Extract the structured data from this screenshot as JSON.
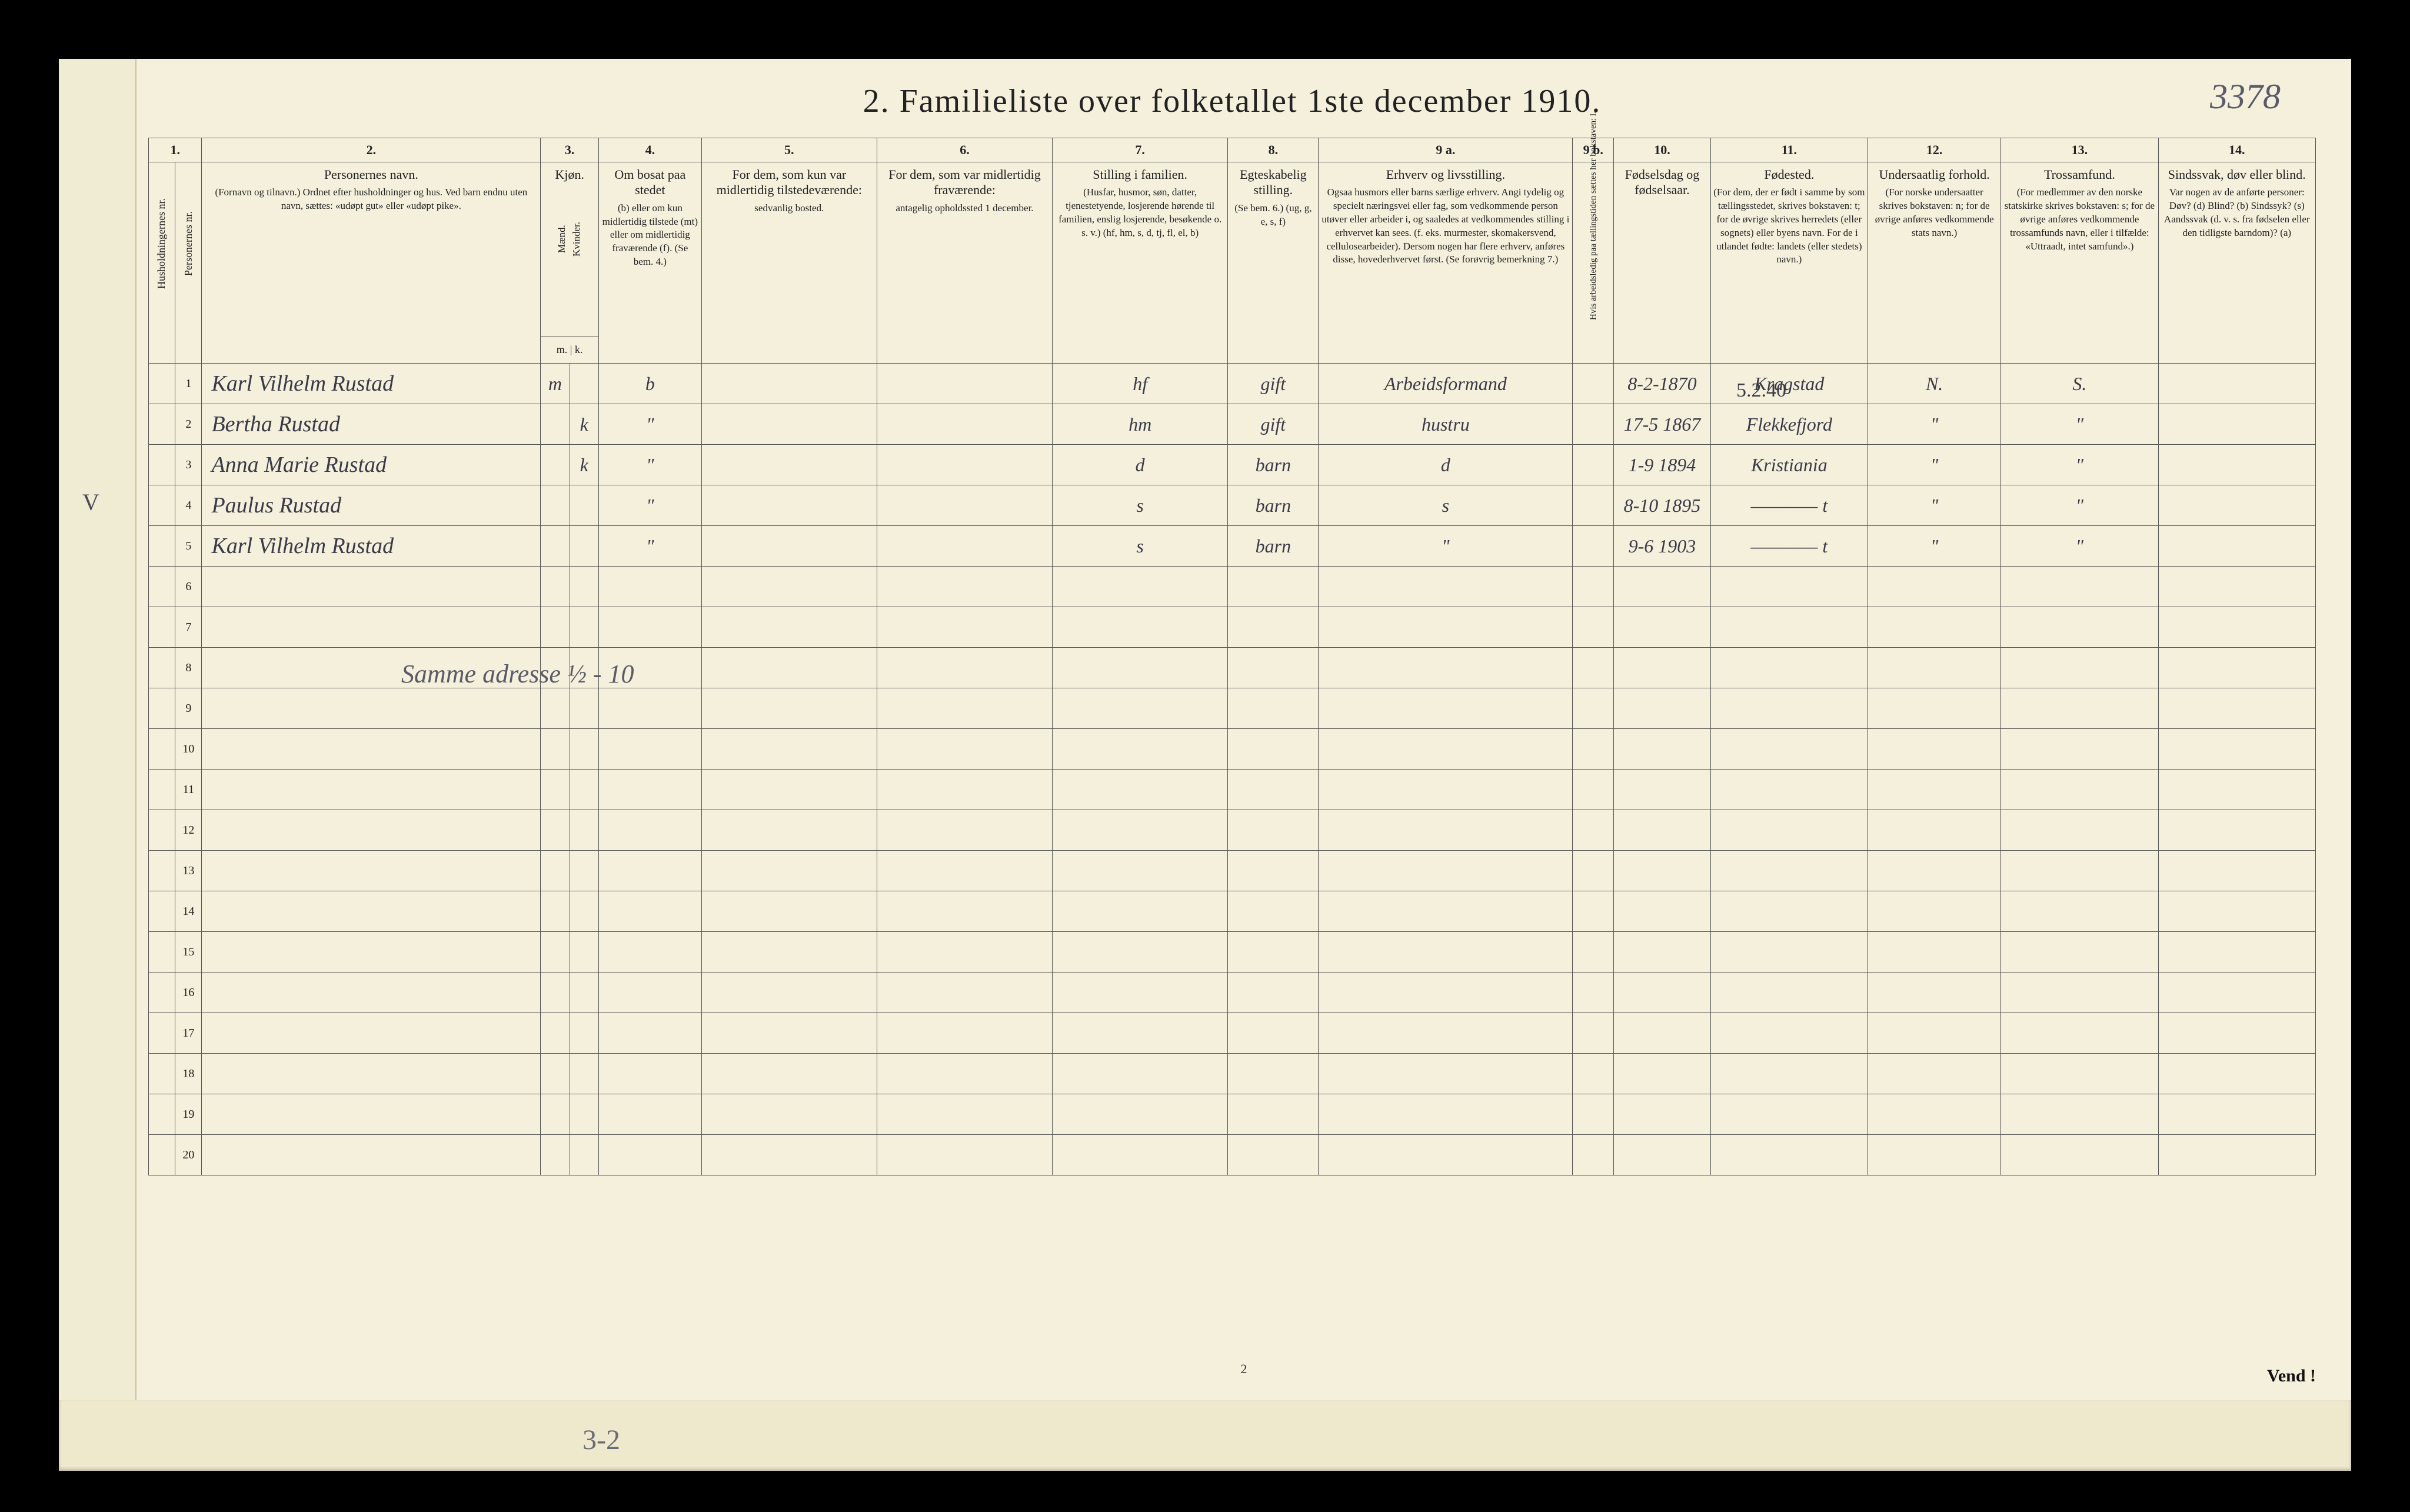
{
  "page": {
    "handwritten_topright": "3378",
    "title": "2.  Familieliste over folketallet 1ste december 1910.",
    "footer_pagenum": "2",
    "footer_vend": "Vend !",
    "bottom_note": "3-2",
    "left_annotation": "V",
    "overlay_address": "Samme adresse ½ - 10",
    "annotation_date": "5.2.40"
  },
  "col_numbers": [
    "1.",
    "2.",
    "3.",
    "4.",
    "5.",
    "6.",
    "7.",
    "8.",
    "9 a.",
    "9 b.",
    "10.",
    "11.",
    "12.",
    "13.",
    "14."
  ],
  "headers": {
    "c1a": "Husholdningernes nr.",
    "c1b": "Personernes nr.",
    "c2": {
      "title": "Personernes navn.",
      "sub": "(Fornavn og tilnavn.)\nOrdnet efter husholdninger og hus.\nVed barn endnu uten navn, sættes: «udøpt gut»\neller «udøpt pike»."
    },
    "c3": {
      "title": "Kjøn.",
      "left": "Mænd.",
      "right": "Kvinder.",
      "bottom": "m. | k."
    },
    "c4": {
      "title": "Om bosat paa stedet",
      "sub": "(b) eller om kun midlertidig tilstede (mt) eller om midlertidig fraværende (f).\n(Se bem. 4.)"
    },
    "c5": {
      "title": "For dem, som kun var midlertidig tilstedeværende:",
      "sub": "sedvanlig bosted."
    },
    "c6": {
      "title": "For dem, som var midlertidig fraværende:",
      "sub": "antagelig opholdssted 1 december."
    },
    "c7": {
      "title": "Stilling i familien.",
      "sub": "(Husfar, husmor, søn, datter, tjenestetyende, losjerende hørende til familien, enslig losjerende, besøkende o. s. v.)\n(hf, hm, s, d, tj, fl, el, b)"
    },
    "c8": {
      "title": "Egteskabelig stilling.",
      "sub": "(Se bem. 6.)\n(ug, g, e, s, f)"
    },
    "c9a": {
      "title": "Erhverv og livsstilling.",
      "sub": "Ogsaa husmors eller barns særlige erhverv. Angi tydelig og specielt næringsvei eller fag, som vedkommende person utøver eller arbeider i, og saaledes at vedkommendes stilling i erhvervet kan sees. (f. eks. murmester, skomakersvend, cellulosearbeider). Dersom nogen har flere erhverv, anføres disse, hovederhvervet først.\n(Se forøvrig bemerkning 7.)"
    },
    "c9b": "Hvis arbeidsledig paa tællingstiden sættes her bokstaven: l.",
    "c10": {
      "title": "Fødselsdag og fødselsaar."
    },
    "c11": {
      "title": "Fødested.",
      "sub": "(For dem, der er født i samme by som tællingsstedet, skrives bokstaven: t; for de øvrige skrives herredets (eller sognets) eller byens navn. For de i utlandet fødte: landets (eller stedets) navn.)"
    },
    "c12": {
      "title": "Undersaatlig forhold.",
      "sub": "(For norske undersaatter skrives bokstaven: n; for de øvrige anføres vedkommende stats navn.)"
    },
    "c13": {
      "title": "Trossamfund.",
      "sub": "(For medlemmer av den norske statskirke skrives bokstaven: s; for de øvrige anføres vedkommende trossamfunds navn, eller i tilfælde: «Uttraadt, intet samfund».)"
    },
    "c14": {
      "title": "Sindssvak, døv eller blind.",
      "sub": "Var nogen av de anførte personer:\nDøv?       (d)\nBlind?     (b)\nSindssyk?  (s)\nAandssvak (d. v. s. fra fødselen eller den tidligste barndom)? (a)"
    }
  },
  "rows": [
    {
      "n": "1",
      "name": "Karl Vilhelm Rustad",
      "sex": "m",
      "c4": "b",
      "c7": "hf",
      "c8": "gift",
      "c9a": "Arbeidsformand",
      "c10": "8-2-1870",
      "c11": "Kragstad",
      "c12": "N.",
      "c13": "S."
    },
    {
      "n": "2",
      "name": "Bertha Rustad",
      "sex": "k",
      "c4": "\"",
      "c7": "hm",
      "c8": "gift",
      "c9a": "hustru",
      "c10": "17-5 1867",
      "c11": "Flekkefjord",
      "c12": "\"",
      "c13": "\""
    },
    {
      "n": "3",
      "name": "Anna Marie Rustad",
      "sex": "k",
      "c4": "\"",
      "c7": "d",
      "c8": "barn",
      "c9a": "d",
      "c10": "1-9 1894",
      "c11": "Kristiania",
      "c12": "\"",
      "c13": "\""
    },
    {
      "n": "4",
      "name": "Paulus Rustad",
      "sex": "",
      "c4": "\"",
      "c7": "s",
      "c8": "barn",
      "c9a": "s",
      "c10": "8-10 1895",
      "c11": "———— t",
      "c12": "\"",
      "c13": "\""
    },
    {
      "n": "5",
      "name": "Karl Vilhelm Rustad",
      "sex": "",
      "c4": "\"",
      "c7": "s",
      "c8": "barn",
      "c9a": "\"",
      "c10": "9-6 1903",
      "c11": "———— t",
      "c12": "\"",
      "c13": "\""
    },
    {
      "n": "6"
    },
    {
      "n": "7"
    },
    {
      "n": "8"
    },
    {
      "n": "9"
    },
    {
      "n": "10"
    },
    {
      "n": "11"
    },
    {
      "n": "12"
    },
    {
      "n": "13"
    },
    {
      "n": "14"
    },
    {
      "n": "15"
    },
    {
      "n": "16"
    },
    {
      "n": "17"
    },
    {
      "n": "18"
    },
    {
      "n": "19"
    },
    {
      "n": "20"
    }
  ],
  "colors": {
    "paper": "#f4f0dc",
    "border": "#555",
    "ink_print": "#222",
    "ink_hand": "#3a3a48",
    "background": "#0a0a0a"
  }
}
